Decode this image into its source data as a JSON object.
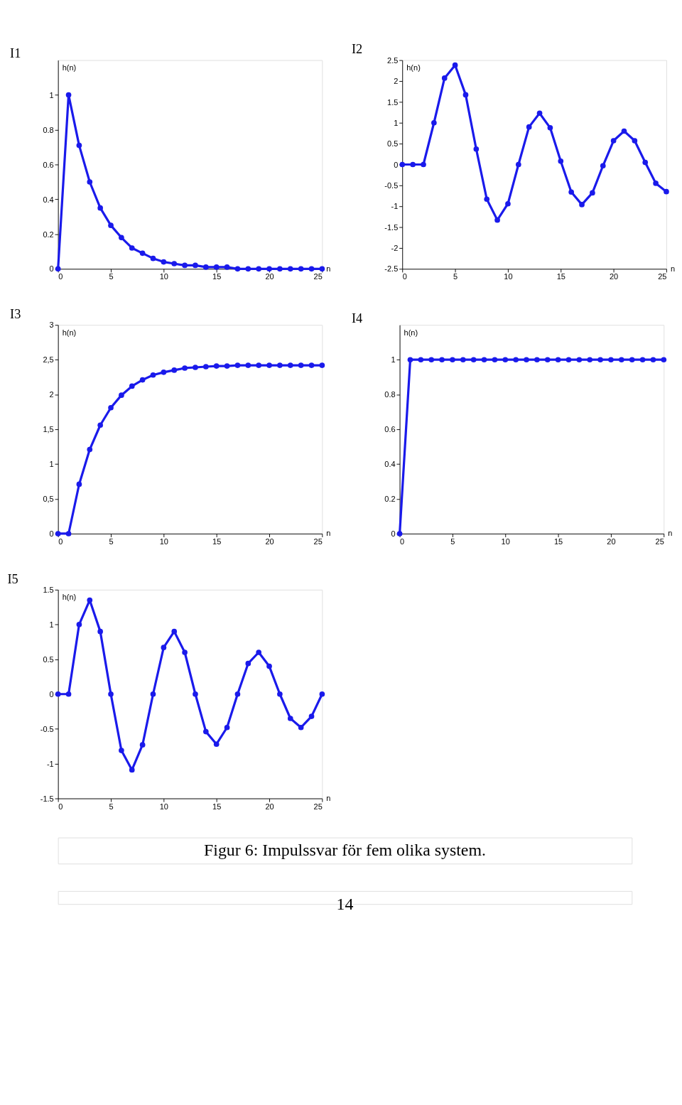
{
  "chart_data": [
    {
      "type": "line",
      "title": "I1",
      "xlabel": "n",
      "ylabel": "h(n)",
      "marker": "circle",
      "line_style": "solid",
      "xlim": [
        0,
        25
      ],
      "xticks": [
        0,
        5,
        10,
        15,
        20,
        25
      ],
      "ylim": [
        0,
        1.2
      ],
      "yticks": [
        0,
        0.2,
        0.4,
        0.6,
        0.8,
        1
      ],
      "x": [
        0,
        1,
        2,
        3,
        4,
        5,
        6,
        7,
        8,
        9,
        10,
        11,
        12,
        13,
        14,
        15,
        16,
        17,
        18,
        19,
        20,
        21,
        22,
        23,
        24,
        25
      ],
      "series": [
        {
          "color": "#1a1aeb",
          "values": [
            0,
            1,
            0.71,
            0.5,
            0.35,
            0.25,
            0.18,
            0.12,
            0.09,
            0.06,
            0.04,
            0.03,
            0.02,
            0.02,
            0.01,
            0.01,
            0.01,
            0,
            0,
            0,
            0,
            0,
            0,
            0,
            0,
            0
          ]
        }
      ]
    },
    {
      "type": "line",
      "title": "I2",
      "xlabel": "n",
      "ylabel": "h(n)",
      "marker": "circle",
      "line_style": "solid",
      "xlim": [
        0,
        25
      ],
      "xticks": [
        0,
        5,
        10,
        15,
        20,
        25
      ],
      "ylim": [
        -2.5,
        2.5
      ],
      "yticks": [
        -2.5,
        -2,
        -1.5,
        -1,
        -0.5,
        0,
        0.5,
        1,
        1.5,
        2,
        2.5
      ],
      "x": [
        0,
        1,
        2,
        3,
        4,
        5,
        6,
        7,
        8,
        9,
        10,
        11,
        12,
        13,
        14,
        15,
        16,
        17,
        18,
        19,
        20,
        21,
        22,
        23,
        24,
        25
      ],
      "series": [
        {
          "color": "#1a1aeb",
          "values": [
            0,
            0,
            0,
            1,
            2.07,
            2.38,
            1.67,
            0.37,
            -0.83,
            -1.33,
            -0.94,
            0,
            0.9,
            1.23,
            0.88,
            0.08,
            -0.66,
            -0.96,
            -0.68,
            -0.03,
            0.57,
            0.8,
            0.57,
            0.05,
            -0.45,
            -0.65
          ]
        }
      ]
    },
    {
      "type": "line",
      "title": "I3",
      "xlabel": "n",
      "ylabel": "h(n)",
      "marker": "circle",
      "line_style": "solid",
      "xlim": [
        0,
        25
      ],
      "xticks": [
        0,
        5,
        10,
        15,
        20,
        25
      ],
      "ylim": [
        0,
        3
      ],
      "yticks": [
        0,
        {
          "value": 0.5,
          "label": "0,5"
        },
        1,
        {
          "value": 1.5,
          "label": "1,5"
        },
        2,
        {
          "value": 2.5,
          "label": "2,5"
        },
        3
      ],
      "x": [
        0,
        1,
        2,
        3,
        4,
        5,
        6,
        7,
        8,
        9,
        10,
        11,
        12,
        13,
        14,
        15,
        16,
        17,
        18,
        19,
        20,
        21,
        22,
        23,
        24,
        25
      ],
      "series": [
        {
          "color": "#1a1aeb",
          "values": [
            0,
            0,
            0.71,
            1.21,
            1.56,
            1.81,
            1.99,
            2.12,
            2.21,
            2.28,
            2.32,
            2.35,
            2.38,
            2.39,
            2.4,
            2.41,
            2.41,
            2.42,
            2.42,
            2.42,
            2.42,
            2.42,
            2.42,
            2.42,
            2.42,
            2.42
          ]
        }
      ]
    },
    {
      "type": "line",
      "title": "I4",
      "xlabel": "n",
      "ylabel": "h(n)",
      "marker": "circle",
      "line_style": "solid",
      "xlim": [
        0,
        25
      ],
      "xticks": [
        0,
        5,
        10,
        15,
        20,
        25
      ],
      "ylim": [
        0,
        1.2
      ],
      "yticks": [
        0,
        0.2,
        0.4,
        0.6,
        0.8,
        1
      ],
      "x": [
        0,
        1,
        2,
        3,
        4,
        5,
        6,
        7,
        8,
        9,
        10,
        11,
        12,
        13,
        14,
        15,
        16,
        17,
        18,
        19,
        20,
        21,
        22,
        23,
        24,
        25
      ],
      "series": [
        {
          "color": "#1a1aeb",
          "values": [
            0,
            1,
            1,
            1,
            1,
            1,
            1,
            1,
            1,
            1,
            1,
            1,
            1,
            1,
            1,
            1,
            1,
            1,
            1,
            1,
            1,
            1,
            1,
            1,
            1,
            1
          ]
        }
      ]
    },
    {
      "type": "line",
      "title": "I5",
      "xlabel": "n",
      "ylabel": "h(n)",
      "marker": "circle",
      "line_style": "solid",
      "xlim": [
        0,
        25
      ],
      "xticks": [
        0,
        5,
        10,
        15,
        20,
        25
      ],
      "ylim": [
        -1.5,
        1.5
      ],
      "yticks": [
        -1.5,
        -1,
        -0.5,
        0,
        0.5,
        1,
        1.5
      ],
      "x": [
        0,
        1,
        2,
        3,
        4,
        5,
        6,
        7,
        8,
        9,
        10,
        11,
        12,
        13,
        14,
        15,
        16,
        17,
        18,
        19,
        20,
        21,
        22,
        23,
        24,
        25
      ],
      "series": [
        {
          "color": "#1a1aeb",
          "values": [
            0,
            0,
            1,
            1.35,
            0.9,
            0,
            -0.81,
            -1.09,
            -0.73,
            0,
            0.67,
            0.9,
            0.6,
            0,
            -0.54,
            -0.72,
            -0.48,
            0,
            0.44,
            0.6,
            0.4,
            0,
            -0.35,
            -0.48,
            -0.32,
            0
          ]
        }
      ],
      "annotations": [
        "Figur 6: Impulssvar för fem olika system.",
        "14"
      ]
    }
  ]
}
